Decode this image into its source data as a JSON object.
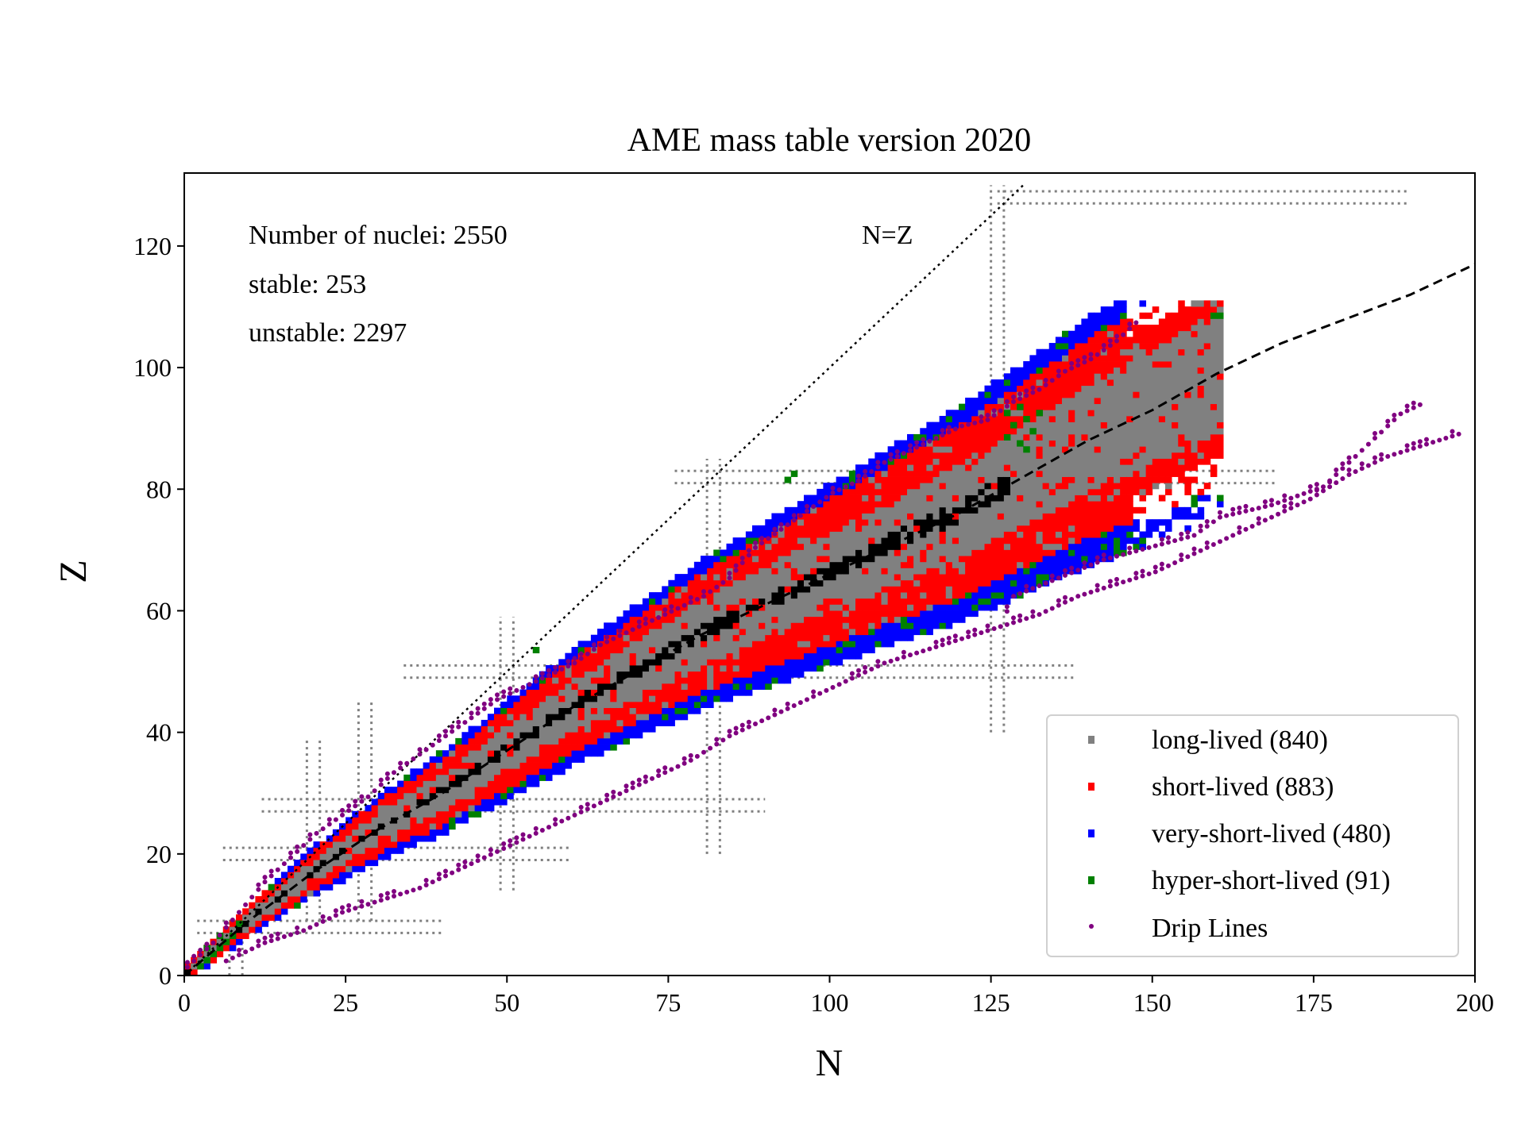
{
  "chart_data": {
    "type": "scatter",
    "title": "AME mass table version 2020",
    "xlabel": "N",
    "ylabel": "Z",
    "xlim": [
      0,
      200
    ],
    "ylim": [
      0,
      132
    ],
    "xticks": [
      "0",
      "25",
      "50",
      "75",
      "100",
      "125",
      "150",
      "175",
      "200"
    ],
    "xtick_values": [
      0,
      25,
      50,
      75,
      100,
      125,
      150,
      175,
      200
    ],
    "yticks": [
      "0",
      "20",
      "40",
      "60",
      "80",
      "100",
      "120"
    ],
    "ytick_values": [
      0,
      20,
      40,
      60,
      80,
      100,
      120
    ],
    "grid": false,
    "legend_position": "lower-right",
    "annotations": {
      "count_total": "Number of nuclei: 2550",
      "count_stable": "stable: 253",
      "count_unstable": "unstable: 2297",
      "nz_label": "N=Z"
    },
    "colors": {
      "long_lived": "#808080",
      "short_lived": "#ff0000",
      "very_short_lived": "#0000ff",
      "hyper_short_lived": "#008000",
      "drip_lines": "#800080",
      "stable": "#000000",
      "magic_lines": "#808080"
    },
    "series": [
      {
        "name": "long-lived (840)",
        "key": "long_lived",
        "count": 840
      },
      {
        "name": "short-lived (883)",
        "key": "short_lived",
        "count": 883
      },
      {
        "name": "very-short-lived (480)",
        "key": "very_short_lived",
        "count": 480
      },
      {
        "name": "hyper-short-lived (91)",
        "key": "hyper_short_lived",
        "count": 91
      },
      {
        "name": "Drip Lines",
        "key": "drip_lines"
      }
    ],
    "magic_numbers": [
      8,
      20,
      28,
      50,
      82,
      126
    ],
    "magic_ranges": {
      "8": {
        "as_Z_N_range": [
          2,
          40
        ],
        "as_N_Z_range": [
          0,
          9
        ]
      },
      "20": {
        "as_Z_N_range": [
          6,
          60
        ],
        "as_N_Z_range": [
          9,
          39
        ]
      },
      "28": {
        "as_Z_N_range": [
          12,
          90
        ],
        "as_N_Z_range": [
          9,
          45
        ]
      },
      "50": {
        "as_Z_N_range": [
          34,
          138
        ],
        "as_N_Z_range": [
          14,
          59
        ]
      },
      "82": {
        "as_Z_N_range": [
          76,
          169
        ],
        "as_N_Z_range": [
          20,
          85
        ]
      },
      "126": {
        "as_Z_N_range": null,
        "as_N_Z_range": [
          40,
          130
        ]
      },
      "128": {
        "as_Z_N_range": [
          126,
          190
        ],
        "as_N_Z_range": null
      }
    },
    "stability_line": {
      "style": "dashed",
      "points": [
        [
          0,
          0
        ],
        [
          10,
          9
        ],
        [
          20,
          17
        ],
        [
          30,
          24
        ],
        [
          40,
          30
        ],
        [
          50,
          37
        ],
        [
          60,
          44
        ],
        [
          70,
          50
        ],
        [
          80,
          56
        ],
        [
          90,
          61
        ],
        [
          100,
          66
        ],
        [
          110,
          71
        ],
        [
          120,
          76
        ],
        [
          130,
          82
        ],
        [
          140,
          88
        ],
        [
          150,
          93
        ],
        [
          160,
          99
        ],
        [
          170,
          104
        ],
        [
          180,
          108
        ],
        [
          190,
          112
        ],
        [
          200,
          117
        ]
      ]
    },
    "nz_line": {
      "style": "dotted",
      "from": [
        0,
        0
      ],
      "to": [
        130,
        130
      ]
    },
    "drip_lines": {
      "proton": [
        [
          0,
          1
        ],
        [
          4,
          5
        ],
        [
          8,
          10
        ],
        [
          12,
          15
        ],
        [
          16,
          19
        ],
        [
          20,
          23
        ],
        [
          24,
          26
        ],
        [
          28,
          29
        ],
        [
          32,
          33
        ],
        [
          36,
          36
        ],
        [
          40,
          39
        ],
        [
          44,
          42
        ],
        [
          48,
          45
        ],
        [
          52,
          47
        ],
        [
          56,
          49
        ],
        [
          60,
          51
        ],
        [
          64,
          54
        ],
        [
          68,
          56
        ],
        [
          72,
          58
        ],
        [
          76,
          60
        ],
        [
          80,
          62
        ],
        [
          84,
          65
        ],
        [
          88,
          70
        ],
        [
          92,
          73
        ],
        [
          96,
          76
        ],
        [
          100,
          79
        ],
        [
          104,
          81
        ],
        [
          108,
          84
        ],
        [
          112,
          86
        ],
        [
          116,
          88
        ],
        [
          120,
          90
        ],
        [
          124,
          91
        ],
        [
          128,
          94
        ],
        [
          132,
          96
        ],
        [
          136,
          99
        ],
        [
          140,
          101
        ],
        [
          144,
          104
        ],
        [
          148,
          108
        ]
      ],
      "neutron": [
        [
          6,
          2
        ],
        [
          12,
          5
        ],
        [
          18,
          7
        ],
        [
          24,
          10
        ],
        [
          30,
          12
        ],
        [
          36,
          14
        ],
        [
          42,
          17
        ],
        [
          48,
          20
        ],
        [
          54,
          23
        ],
        [
          60,
          26
        ],
        [
          66,
          29
        ],
        [
          72,
          32
        ],
        [
          78,
          35
        ],
        [
          84,
          39
        ],
        [
          90,
          42
        ],
        [
          96,
          45
        ],
        [
          102,
          48
        ],
        [
          108,
          51
        ],
        [
          114,
          53
        ],
        [
          120,
          55
        ],
        [
          126,
          57
        ],
        [
          132,
          59
        ],
        [
          138,
          62
        ],
        [
          144,
          64
        ],
        [
          150,
          66
        ],
        [
          156,
          69
        ],
        [
          162,
          72
        ],
        [
          168,
          75
        ],
        [
          174,
          78
        ],
        [
          180,
          82
        ],
        [
          186,
          85
        ],
        [
          192,
          87
        ],
        [
          198,
          89
        ]
      ],
      "neutron_upper": [
        [
          126,
          57
        ],
        [
          128,
          62
        ],
        [
          142,
          68
        ],
        [
          156,
          72
        ],
        [
          160,
          75
        ],
        [
          168,
          77
        ],
        [
          176,
          80
        ],
        [
          186,
          90
        ],
        [
          188,
          92
        ],
        [
          192,
          94
        ]
      ]
    }
  }
}
